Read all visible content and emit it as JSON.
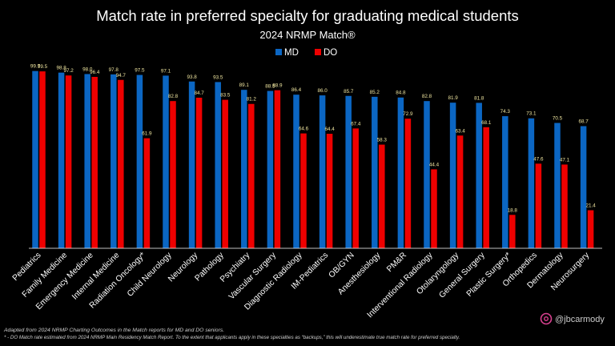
{
  "chart_data": {
    "type": "bar",
    "title": "Match rate in preferred specialty for graduating medical students",
    "subtitle": "2024 NRMP Match®",
    "xlabel": "",
    "ylabel": "",
    "ylim": [
      0,
      100
    ],
    "grid": false,
    "legend_position": "top-center",
    "categories": [
      "Pediatrics",
      "Family Medicine",
      "Emergency Medicine",
      "Internal Medicine",
      "Radiation Oncology*",
      "Child Neurology",
      "Neurology",
      "Pathology",
      "Psychiatry",
      "Vascular Surgery",
      "Diagnostic Radiology",
      "IM-Pediatrics",
      "OB/GYN",
      "Anesthesiology",
      "PM&R",
      "Interventional Radiology",
      "Otolaryngology",
      "General Surgery",
      "Plastic Surgery*",
      "Orthopedics",
      "Dermatology",
      "Neurosurgery"
    ],
    "series": [
      {
        "name": "MD",
        "color": "#0b66c3",
        "values": [
          99.7,
          98.8,
          98.0,
          97.8,
          97.5,
          97.1,
          93.8,
          93.5,
          89.1,
          88.5,
          86.4,
          86.0,
          85.7,
          85.2,
          84.8,
          82.8,
          81.9,
          81.8,
          74.3,
          73.1,
          70.5,
          68.7
        ]
      },
      {
        "name": "DO",
        "color": "#ee0000",
        "values": [
          99.5,
          97.2,
          96.4,
          94.7,
          61.9,
          82.8,
          84.7,
          83.5,
          81.2,
          88.9,
          64.6,
          64.4,
          67.4,
          58.3,
          72.9,
          44.4,
          63.4,
          68.1,
          18.8,
          47.6,
          47.1,
          21.4
        ]
      }
    ],
    "footnotes": [
      "Adapted from 2024 NRMP Charting Outcomes in the Match reports for MD and DO seniors.",
      "* - DO Match rate estimated from 2024 NRMP Main Residency Match Report. To the extent that applicants apply in these specialties as “backups,” this will underestimate true match rate for preferred specialty."
    ],
    "handle": "@jbcarmody"
  },
  "colors": {
    "background": "#000000",
    "value_label": "#f0e6a0",
    "text": "#ffffff"
  }
}
